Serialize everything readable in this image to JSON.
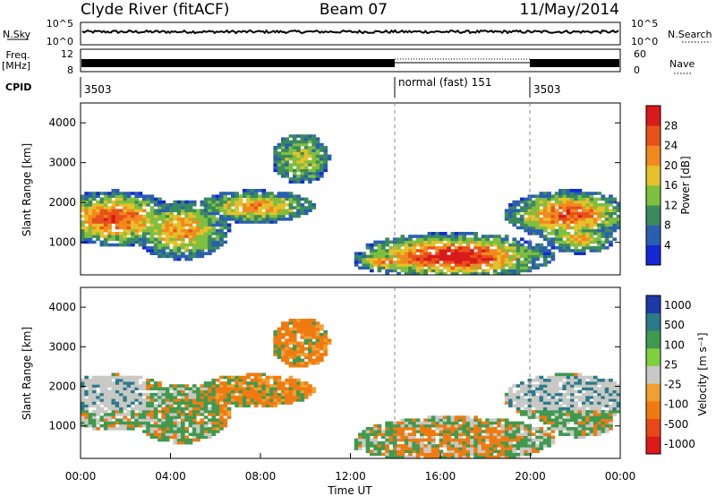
{
  "header": {
    "title": "Clyde River (fitACF)",
    "beam": "Beam 07",
    "date": "11/May/2014"
  },
  "noise_panel": {
    "left_label": "N.Sky",
    "right_label": "N.Search",
    "left_ticks": [
      "10^5",
      "10^0"
    ],
    "right_ticks": [
      "10^5",
      "10^0"
    ]
  },
  "freq_panel": {
    "left_label_1": "Freq.",
    "left_label_2": "[MHz]",
    "left_ticks": [
      "12",
      "8"
    ],
    "right_label": "Nave",
    "right_ticks": [
      "60",
      "0"
    ]
  },
  "cpid_panel": {
    "label": "CPID",
    "segments": [
      {
        "start_hr": 0.0,
        "end_hr": 14.0,
        "text": "3503"
      },
      {
        "start_hr": 14.0,
        "end_hr": 20.0,
        "text": "normal (fast) 151"
      },
      {
        "start_hr": 20.0,
        "end_hr": 24.0,
        "text": "3503"
      }
    ]
  },
  "chart_data": [
    {
      "type": "heatmap",
      "name": "power",
      "ylabel": "Slant Range [km]",
      "xlim": [
        0,
        24
      ],
      "ylim": [
        180,
        4500
      ],
      "yticks": [
        "1000",
        "2000",
        "3000",
        "4000"
      ],
      "colorbar": {
        "label": "Power [dB]",
        "ticks": [
          "4",
          "8",
          "12",
          "16",
          "20",
          "24",
          "28"
        ],
        "colors": [
          "#1428d8",
          "#2a5fb0",
          "#3a8a5c",
          "#7fbf3f",
          "#e6c02a",
          "#f08a1e",
          "#e8501a",
          "#d81a1a"
        ]
      }
    },
    {
      "type": "heatmap",
      "name": "velocity",
      "xlabel": "Time UT",
      "ylabel": "Slant Range [km]",
      "xlim": [
        0,
        24
      ],
      "ylim": [
        180,
        4500
      ],
      "yticks": [
        "1000",
        "2000",
        "3000",
        "4000"
      ],
      "xticks": [
        "00:00",
        "04:00",
        "08:00",
        "12:00",
        "16:00",
        "20:00",
        "00:00"
      ],
      "colorbar": {
        "label": "Velocity [m s⁻¹]",
        "ticks": [
          "1000",
          "500",
          "100",
          "25",
          "-25",
          "-100",
          "-500",
          "-1000"
        ],
        "colors": [
          "#1a3aa8",
          "#2a7a8a",
          "#3f9a4f",
          "#7fd03f",
          "#c8c8c4",
          "#f0a030",
          "#f07a10",
          "#e84818",
          "#e01818"
        ]
      }
    }
  ]
}
